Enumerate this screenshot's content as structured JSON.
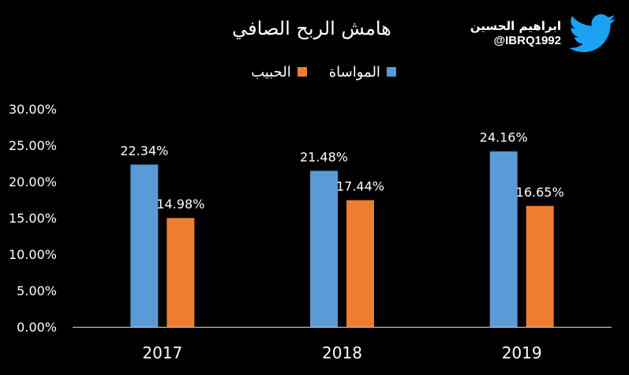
{
  "brand": {
    "name": "ابراهيم الحسين",
    "handle": "@IBRQ1992",
    "icon": "twitter-bird-icon",
    "icon_color": "#1DA1F2"
  },
  "chart_data": {
    "type": "bar",
    "title": "هامش الربح الصافي",
    "categories": [
      "2017",
      "2018",
      "2019"
    ],
    "series": [
      {
        "name": "المواساة",
        "values": [
          22.34,
          21.48,
          24.16
        ],
        "labels": [
          "22.34%",
          "21.48%",
          "24.16%"
        ],
        "color": "#5B9BD5"
      },
      {
        "name": "الحبيب",
        "values": [
          14.98,
          17.44,
          16.65
        ],
        "labels": [
          "14.98%",
          "17.44%",
          "16.65%"
        ],
        "color": "#ED7D31"
      }
    ],
    "yticks": [
      "0.00%",
      "5.00%",
      "10.00%",
      "15.00%",
      "20.00%",
      "25.00%",
      "30.00%"
    ],
    "ylim": [
      0,
      30
    ],
    "ytick_step": 5,
    "grid": false,
    "legend_position": "top",
    "background": "#000000"
  }
}
